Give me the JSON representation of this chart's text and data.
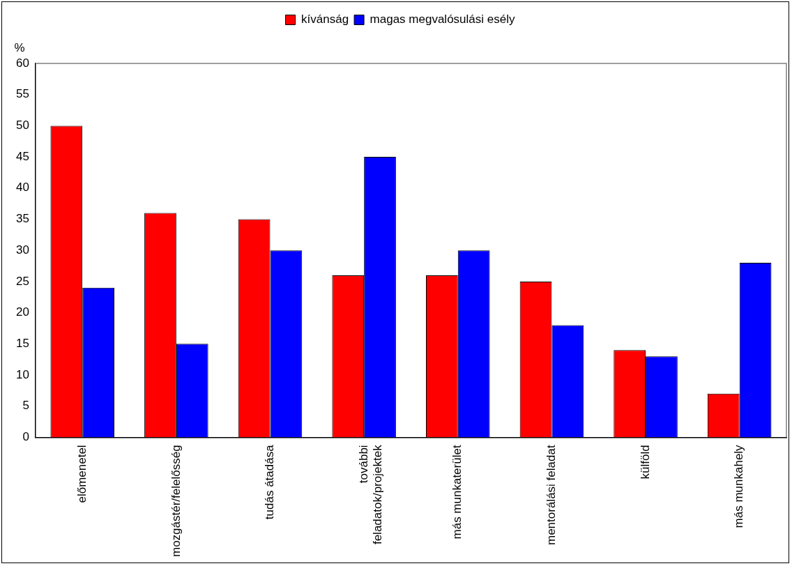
{
  "chart_data": {
    "type": "bar",
    "ylabel": "%",
    "categories": [
      "előmenetel",
      "mozgástér/felelősség",
      "tudás átadása",
      "további feladatok/projektek",
      "más munkaterület",
      "mentorálási feladat",
      "külföld",
      "más munkahely"
    ],
    "series": [
      {
        "name": "kívánság",
        "color": "#ff0000",
        "values": [
          50,
          36,
          35,
          26,
          26,
          25,
          14,
          7
        ]
      },
      {
        "name": "magas megvalósulási esély",
        "color": "#0000ff",
        "values": [
          24,
          15,
          30,
          45,
          30,
          18,
          13,
          28
        ]
      }
    ],
    "ylim": [
      0,
      60
    ],
    "yticks": [
      0,
      5,
      10,
      15,
      20,
      25,
      30,
      35,
      40,
      45,
      50,
      55,
      60
    ],
    "grid": false,
    "legend": "top"
  }
}
